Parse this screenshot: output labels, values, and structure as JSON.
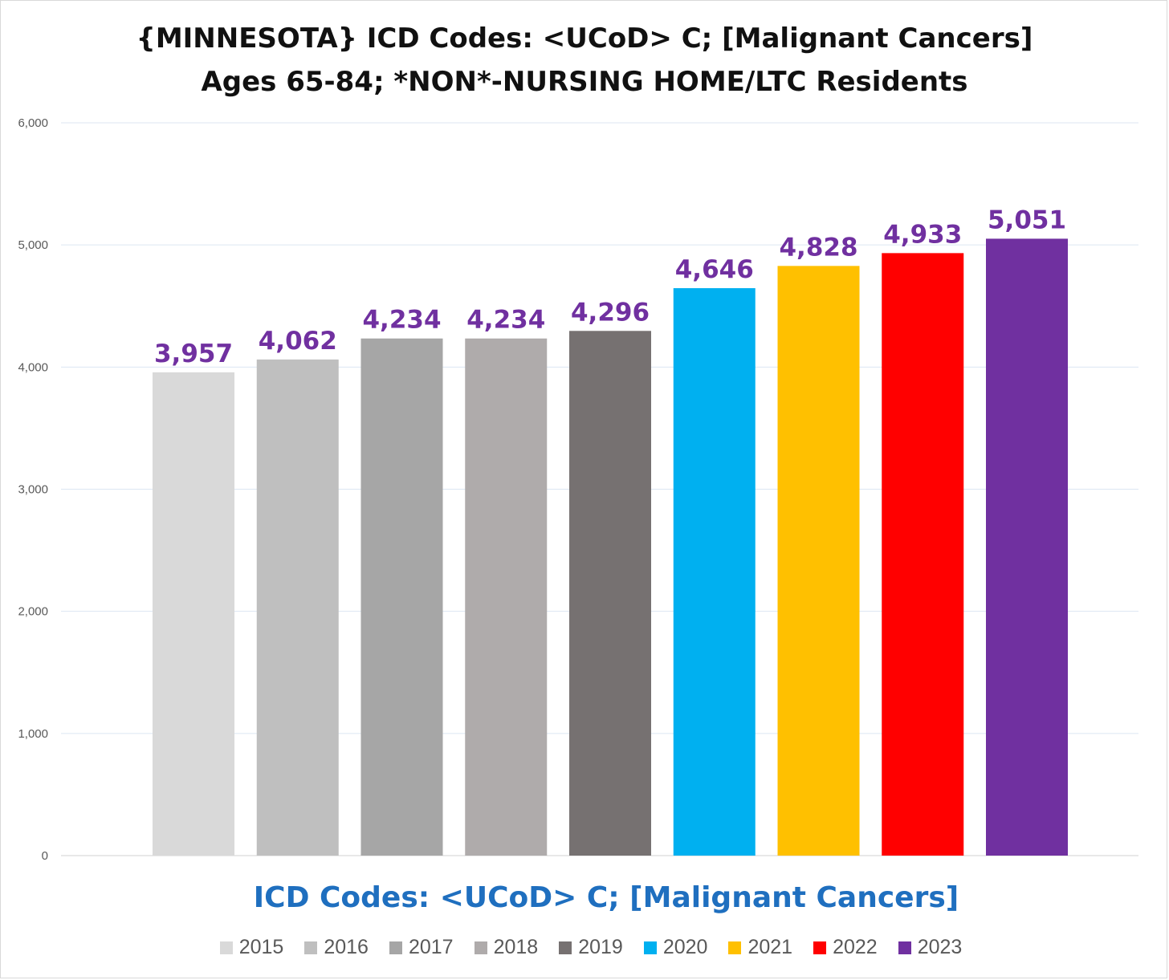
{
  "chart_data": {
    "type": "bar",
    "title": "{MINNESOTA}  ICD Codes: <UCoD> C;  [Malignant Cancers]",
    "subtitle": "Ages 65-84; *NON*-NURSING HOME/LTC Residents",
    "xlabel": "ICD Codes: <UCoD> C;  [Malignant Cancers]",
    "ylabel": "",
    "ylim": [
      0,
      6000
    ],
    "yticks": [
      "0",
      "1,000",
      "2,000",
      "3,000",
      "4,000",
      "5,000",
      "6,000"
    ],
    "grid": true,
    "legend_position": "bottom",
    "categories": [
      "2015",
      "2016",
      "2017",
      "2018",
      "2019",
      "2020",
      "2021",
      "2022",
      "2023"
    ],
    "values": [
      3957,
      4062,
      4234,
      4234,
      4296,
      4646,
      4828,
      4933,
      5051
    ],
    "value_labels": [
      "3,957",
      "4,062",
      "4,234",
      "4,234",
      "4,296",
      "4,646",
      "4,828",
      "4,933",
      "5,051"
    ],
    "colors": [
      "#d9d9d9",
      "#bfbfbf",
      "#a6a6a6",
      "#afabab",
      "#767171",
      "#00b0f0",
      "#ffc000",
      "#ff0000",
      "#7030a0"
    ],
    "label_color": "#7030a0"
  }
}
